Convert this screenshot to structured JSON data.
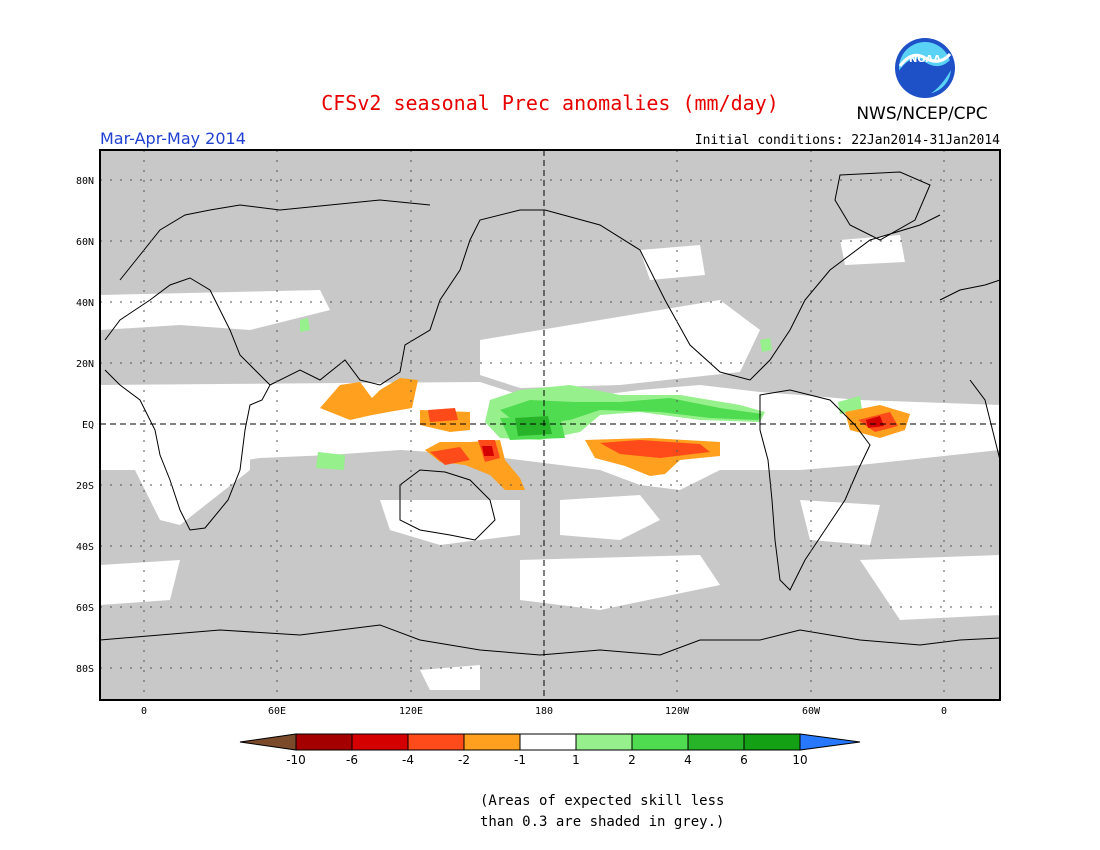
{
  "title": "CFSv2 seasonal Prec anomalies (mm/day)",
  "org": "NWS/NCEP/CPC",
  "logo_text": "NOAA",
  "season": "Mar-Apr-May 2014",
  "init_conditions": "Initial conditions: 22Jan2014-31Jan2014",
  "map": {
    "lat_labels": [
      "80N",
      "60N",
      "40N",
      "20N",
      "EQ",
      "20S",
      "40S",
      "60S",
      "80S"
    ],
    "lon_labels": [
      "0",
      "60E",
      "120E",
      "180",
      "120W",
      "60W",
      "0"
    ]
  },
  "colorbar": {
    "tick_labels": [
      "-10",
      "-6",
      "-4",
      "-2",
      "-1",
      "1",
      "2",
      "4",
      "6",
      "10"
    ],
    "colors": {
      "lt_-10": "#7a4a2a",
      "-10_-6": "#a50000",
      "-6_-4": "#d40000",
      "-4_-2": "#ff4a1a",
      "-2_-1": "#ffa01e",
      "-1_1": "#ffffff",
      "1_2": "#96f08c",
      "2_4": "#50dc50",
      "4_6": "#28b428",
      "6_10": "#14a014",
      "gt_10": "#2878ff"
    }
  },
  "grey_shade_color": "#c8c8c8",
  "note_line1": "(Areas of expected skill less",
  "note_line2": "than 0.3 are shaded in grey.)"
}
